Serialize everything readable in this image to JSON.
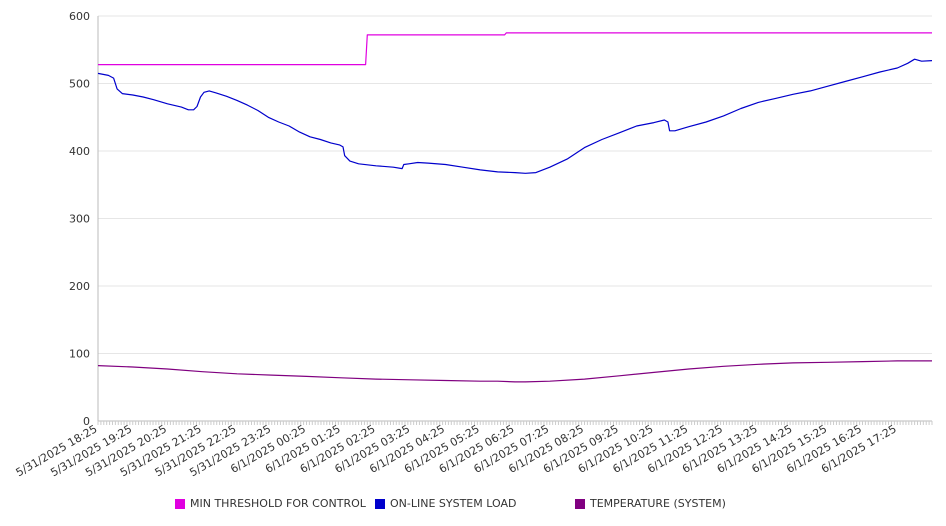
{
  "chart_data": {
    "type": "line",
    "title": "",
    "xlabel": "",
    "ylabel": "",
    "ylim": [
      0,
      600
    ],
    "y_ticks": [
      0,
      100,
      200,
      300,
      400,
      500,
      600
    ],
    "grid": true,
    "legend_position": "bottom",
    "x_tick_labels": [
      "5/31/2025 18:25",
      "5/31/2025 19:25",
      "5/31/2025 20:25",
      "5/31/2025 21:25",
      "5/31/2025 22:25",
      "5/31/2025 23:25",
      "6/1/2025 00:25",
      "6/1/2025 01:25",
      "6/1/2025 02:25",
      "6/1/2025 03:25",
      "6/1/2025 04:25",
      "6/1/2025 05:25",
      "6/1/2025 06:25",
      "6/1/2025 07:25",
      "6/1/2025 08:25",
      "6/1/2025 09:25",
      "6/1/2025 10:25",
      "6/1/2025 11:25",
      "6/1/2025 12:25",
      "6/1/2025 13:25",
      "6/1/2025 14:25",
      "6/1/2025 15:25",
      "6/1/2025 16:25",
      "6/1/2025 17:25"
    ],
    "x_range_hours": [
      0,
      24
    ],
    "series": [
      {
        "name": "MIN THRESHOLD FOR CONTROL",
        "color": "#e000e0",
        "points": [
          [
            0,
            528
          ],
          [
            7.7,
            528
          ],
          [
            7.75,
            572
          ],
          [
            11.7,
            572
          ],
          [
            11.75,
            575
          ],
          [
            24,
            575
          ]
        ]
      },
      {
        "name": "ON-LINE SYSTEM LOAD",
        "color": "#0000cc",
        "points": [
          [
            0,
            515
          ],
          [
            0.3,
            512
          ],
          [
            0.45,
            508
          ],
          [
            0.55,
            492
          ],
          [
            0.7,
            485
          ],
          [
            1.0,
            483
          ],
          [
            1.3,
            480
          ],
          [
            1.6,
            476
          ],
          [
            2.0,
            470
          ],
          [
            2.4,
            465
          ],
          [
            2.6,
            461
          ],
          [
            2.75,
            461
          ],
          [
            2.85,
            466
          ],
          [
            2.95,
            480
          ],
          [
            3.05,
            487
          ],
          [
            3.2,
            489
          ],
          [
            3.4,
            486
          ],
          [
            3.7,
            481
          ],
          [
            4.0,
            475
          ],
          [
            4.3,
            468
          ],
          [
            4.6,
            460
          ],
          [
            4.9,
            450
          ],
          [
            5.2,
            443
          ],
          [
            5.5,
            437
          ],
          [
            5.8,
            428
          ],
          [
            6.1,
            421
          ],
          [
            6.4,
            417
          ],
          [
            6.7,
            412
          ],
          [
            6.95,
            409
          ],
          [
            7.05,
            406
          ],
          [
            7.1,
            393
          ],
          [
            7.25,
            385
          ],
          [
            7.5,
            381
          ],
          [
            8.0,
            378
          ],
          [
            8.5,
            376
          ],
          [
            8.75,
            374
          ],
          [
            8.8,
            380
          ],
          [
            8.95,
            381
          ],
          [
            9.2,
            383
          ],
          [
            9.5,
            382
          ],
          [
            10.0,
            380
          ],
          [
            10.5,
            376
          ],
          [
            11.0,
            372
          ],
          [
            11.5,
            369
          ],
          [
            12.0,
            368
          ],
          [
            12.3,
            367
          ],
          [
            12.6,
            368
          ],
          [
            13.0,
            376
          ],
          [
            13.5,
            388
          ],
          [
            14.0,
            405
          ],
          [
            14.5,
            417
          ],
          [
            15.0,
            427
          ],
          [
            15.5,
            437
          ],
          [
            16.0,
            442
          ],
          [
            16.3,
            446
          ],
          [
            16.4,
            443
          ],
          [
            16.45,
            430
          ],
          [
            16.6,
            430
          ],
          [
            17.0,
            436
          ],
          [
            17.5,
            443
          ],
          [
            18.0,
            452
          ],
          [
            18.5,
            463
          ],
          [
            19.0,
            472
          ],
          [
            19.5,
            478
          ],
          [
            20.0,
            484
          ],
          [
            20.5,
            489
          ],
          [
            21.0,
            496
          ],
          [
            21.5,
            503
          ],
          [
            22.0,
            510
          ],
          [
            22.5,
            517
          ],
          [
            23.0,
            523
          ],
          [
            23.3,
            530
          ],
          [
            23.5,
            536
          ],
          [
            23.7,
            533
          ],
          [
            24,
            534
          ]
        ]
      },
      {
        "name": "TEMPERATURE (SYSTEM)",
        "color": "#800080",
        "points": [
          [
            0,
            82
          ],
          [
            1,
            80
          ],
          [
            2,
            77
          ],
          [
            3,
            73
          ],
          [
            4,
            70
          ],
          [
            5,
            68
          ],
          [
            6,
            66
          ],
          [
            7,
            64
          ],
          [
            8,
            62
          ],
          [
            9,
            61
          ],
          [
            10,
            60
          ],
          [
            11,
            59
          ],
          [
            11.5,
            59
          ],
          [
            12,
            58
          ],
          [
            12.3,
            58
          ],
          [
            13,
            59
          ],
          [
            14,
            62
          ],
          [
            15,
            67
          ],
          [
            16,
            72
          ],
          [
            17,
            77
          ],
          [
            18,
            81
          ],
          [
            19,
            84
          ],
          [
            20,
            86
          ],
          [
            21,
            87
          ],
          [
            22,
            88
          ],
          [
            23,
            89
          ],
          [
            24,
            89
          ]
        ]
      }
    ]
  }
}
